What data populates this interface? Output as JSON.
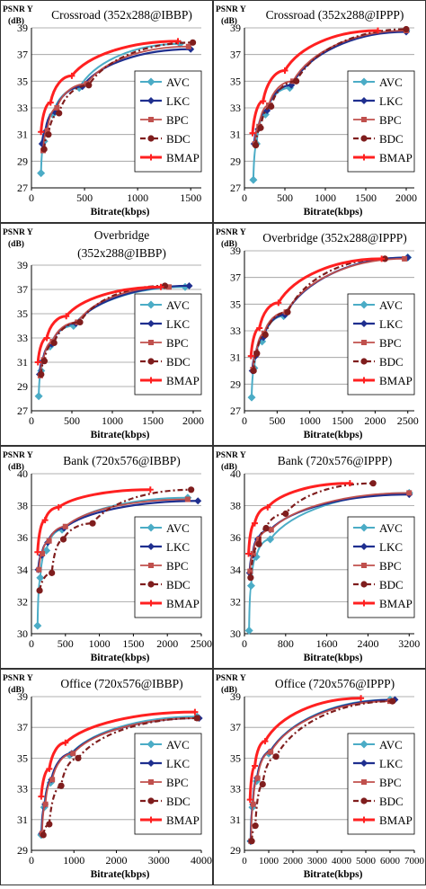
{
  "legend_labels": [
    "AVC",
    "LKC",
    "BPC",
    "BDC",
    "BMAP"
  ],
  "colors": {
    "AVC": "#4bacc6",
    "LKC": "#1f2f8f",
    "BPC": "#c0504d",
    "BDC": "#7f1d1d",
    "BMAP": "#ff2020"
  },
  "chart_data": [
    {
      "type": "line",
      "title": "Crossroad (352x288@IBBP)",
      "ylabel_top": "PSNR Y",
      "ylabel_unit": "(dB)",
      "xlabel": "Bitrate(kbps)",
      "xlim": [
        0,
        1600
      ],
      "ylim": [
        27,
        39
      ],
      "xticks": [
        0,
        500,
        1000,
        1500
      ],
      "yticks": [
        27,
        29,
        31,
        33,
        35,
        37,
        39
      ],
      "series": [
        {
          "name": "AVC",
          "x": [
            90,
            120,
            200,
            450,
            1400
          ],
          "y": [
            28.1,
            30.5,
            32.5,
            34.5,
            37.8
          ]
        },
        {
          "name": "LKC",
          "x": [
            100,
            130,
            220,
            480,
            1500
          ],
          "y": [
            30.3,
            31.2,
            32.7,
            34.6,
            37.4
          ]
        },
        {
          "name": "BPC",
          "x": [
            110,
            150,
            240,
            520,
            1480
          ],
          "y": [
            29.8,
            31.3,
            33.0,
            34.8,
            37.6
          ]
        },
        {
          "name": "BDC",
          "x": [
            120,
            160,
            260,
            540,
            1520
          ],
          "y": [
            29.9,
            31.0,
            32.6,
            34.7,
            37.9
          ]
        },
        {
          "name": "BMAP",
          "x": [
            90,
            180,
            380,
            1380
          ],
          "y": [
            31.2,
            33.4,
            35.4,
            38.0
          ]
        }
      ]
    },
    {
      "type": "line",
      "title": "Crossroad (352x288@IPPP)",
      "ylabel_top": "PSNR Y",
      "ylabel_unit": "(dB)",
      "xlabel": "Bitrate(kbps)",
      "xlim": [
        0,
        2100
      ],
      "ylim": [
        27,
        39
      ],
      "xticks": [
        0,
        500,
        1000,
        1500,
        2000
      ],
      "yticks": [
        27,
        29,
        31,
        33,
        35,
        37,
        39
      ],
      "series": [
        {
          "name": "AVC",
          "x": [
            110,
            150,
            260,
            560,
            2000
          ],
          "y": [
            27.6,
            30.3,
            32.5,
            34.5,
            38.8
          ]
        },
        {
          "name": "LKC",
          "x": [
            120,
            170,
            280,
            580,
            2000
          ],
          "y": [
            30.3,
            31.4,
            32.8,
            34.7,
            38.7
          ]
        },
        {
          "name": "BPC",
          "x": [
            130,
            180,
            300,
            600,
            2000
          ],
          "y": [
            30.3,
            31.6,
            33.2,
            35.0,
            38.8
          ]
        },
        {
          "name": "BDC",
          "x": [
            140,
            200,
            330,
            640,
            2000
          ],
          "y": [
            30.2,
            31.5,
            33.1,
            35.0,
            38.9
          ]
        },
        {
          "name": "BMAP",
          "x": [
            100,
            230,
            500,
            1650
          ],
          "y": [
            31.1,
            33.5,
            35.8,
            38.8
          ]
        }
      ]
    },
    {
      "type": "line",
      "title": "Overbridge",
      "subtitle": "(352x288@IBBP)",
      "ylabel_top": "PSNR Y",
      "ylabel_unit": "(dB)",
      "xlabel": "Bitrate(kbps)",
      "xlim": [
        0,
        2100
      ],
      "ylim": [
        27,
        39
      ],
      "xticks": [
        0,
        500,
        1000,
        1500,
        2000
      ],
      "yticks": [
        27,
        29,
        31,
        33,
        35,
        37,
        39
      ],
      "series": [
        {
          "name": "AVC",
          "x": [
            90,
            120,
            230,
            520,
            1900
          ],
          "y": [
            28.2,
            30.3,
            32.3,
            34.0,
            37.2
          ]
        },
        {
          "name": "LKC",
          "x": [
            100,
            140,
            250,
            550,
            1950
          ],
          "y": [
            30.0,
            31.1,
            32.5,
            34.2,
            37.3
          ]
        },
        {
          "name": "BPC",
          "x": [
            110,
            150,
            260,
            570,
            1700
          ],
          "y": [
            29.9,
            31.2,
            32.7,
            34.3,
            37.2
          ]
        },
        {
          "name": "BDC",
          "x": [
            120,
            160,
            280,
            600,
            1650
          ],
          "y": [
            30.0,
            31.1,
            32.6,
            34.3,
            37.3
          ]
        },
        {
          "name": "BMAP",
          "x": [
            80,
            190,
            430,
            1600
          ],
          "y": [
            31.0,
            33.0,
            34.8,
            37.2
          ]
        }
      ]
    },
    {
      "type": "line",
      "title": "Overbridge (352x288@IPPP)",
      "ylabel_top": "PSNR Y",
      "ylabel_unit": "(dB)",
      "xlabel": "Bitrate(kbps)",
      "xlim": [
        0,
        2600
      ],
      "ylim": [
        27,
        39
      ],
      "xticks": [
        0,
        500,
        1000,
        1500,
        2000,
        2500
      ],
      "yticks": [
        27,
        29,
        31,
        33,
        35,
        37,
        39
      ],
      "series": [
        {
          "name": "AVC",
          "x": [
            110,
            150,
            270,
            600,
            2500
          ],
          "y": [
            28.0,
            30.2,
            32.2,
            34.1,
            38.5
          ]
        },
        {
          "name": "LKC",
          "x": [
            120,
            170,
            290,
            620,
            2500
          ],
          "y": [
            30.0,
            31.1,
            32.5,
            34.2,
            38.5
          ]
        },
        {
          "name": "BPC",
          "x": [
            130,
            180,
            300,
            640,
            2450
          ],
          "y": [
            30.1,
            31.3,
            32.8,
            34.4,
            38.4
          ]
        },
        {
          "name": "BDC",
          "x": [
            140,
            190,
            320,
            660,
            2150
          ],
          "y": [
            30.0,
            31.3,
            32.7,
            34.4,
            38.4
          ]
        },
        {
          "name": "BMAP",
          "x": [
            100,
            230,
            520,
            2100
          ],
          "y": [
            31.1,
            33.2,
            35.1,
            38.4
          ]
        }
      ]
    },
    {
      "type": "line",
      "title": "Bank (720x576@IBBP)",
      "ylabel_top": "PSNR Y",
      "ylabel_unit": "(dB)",
      "xlabel": "Bitrate(kbps)",
      "xlim": [
        0,
        2500
      ],
      "ylim": [
        30,
        40
      ],
      "xticks": [
        0,
        500,
        1000,
        1500,
        2000,
        2500
      ],
      "yticks": [
        30,
        32,
        34,
        36,
        38,
        40
      ],
      "series": [
        {
          "name": "AVC",
          "x": [
            90,
            130,
            220,
            450,
            2300
          ],
          "y": [
            30.5,
            33.5,
            35.2,
            36.5,
            38.5
          ]
        },
        {
          "name": "LKC",
          "x": [
            100,
            150,
            240,
            480,
            2450
          ],
          "y": [
            34.0,
            34.9,
            35.7,
            36.6,
            38.3
          ]
        },
        {
          "name": "BPC",
          "x": [
            110,
            160,
            260,
            500,
            2300
          ],
          "y": [
            34.0,
            35.0,
            35.8,
            36.7,
            38.4
          ]
        },
        {
          "name": "BDC",
          "x": [
            120,
            300,
            470,
            900,
            2350
          ],
          "y": [
            32.7,
            33.8,
            35.9,
            36.9,
            39.0
          ]
        },
        {
          "name": "BMAP",
          "x": [
            90,
            200,
            400,
            1750
          ],
          "y": [
            35.1,
            37.1,
            37.9,
            39.0
          ]
        }
      ]
    },
    {
      "type": "line",
      "title": "Bank (720x576@IPPP)",
      "ylabel_top": "PSNR Y",
      "ylabel_unit": "(dB)",
      "xlabel": "Bitrate(kbps)",
      "xlim": [
        0,
        3300
      ],
      "ylim": [
        30,
        40
      ],
      "xticks": [
        0,
        800,
        1600,
        2400,
        3200
      ],
      "yticks": [
        30,
        32,
        34,
        36,
        38,
        40
      ],
      "series": [
        {
          "name": "AVC",
          "x": [
            90,
            130,
            230,
            500,
            3200
          ],
          "y": [
            30.2,
            33.0,
            34.8,
            35.9,
            38.8
          ]
        },
        {
          "name": "LKC",
          "x": [
            100,
            160,
            260,
            500,
            3200
          ],
          "y": [
            33.8,
            34.9,
            35.9,
            36.5,
            38.7
          ]
        },
        {
          "name": "BPC",
          "x": [
            110,
            170,
            280,
            520,
            3200
          ],
          "y": [
            33.9,
            35.0,
            35.9,
            36.5,
            38.8
          ]
        },
        {
          "name": "BDC",
          "x": [
            120,
            280,
            420,
            800,
            2500
          ],
          "y": [
            33.5,
            35.6,
            36.6,
            37.5,
            39.4
          ]
        },
        {
          "name": "BMAP",
          "x": [
            80,
            200,
            450,
            2050
          ],
          "y": [
            35.0,
            36.9,
            37.9,
            39.4
          ]
        }
      ]
    },
    {
      "type": "line",
      "title": "Office (720x576@IBBP)",
      "ylabel_top": "PSNR Y",
      "ylabel_unit": "(dB)",
      "xlabel": "Bitrate(kbps)",
      "xlim": [
        0,
        4000
      ],
      "ylim": [
        29,
        39
      ],
      "xticks": [
        0,
        1000,
        2000,
        3000,
        4000
      ],
      "yticks": [
        29,
        31,
        33,
        35,
        37,
        39
      ],
      "series": [
        {
          "name": "AVC",
          "x": [
            230,
            300,
            450,
            900,
            3900
          ],
          "y": [
            30.0,
            31.8,
            33.4,
            35.2,
            37.7
          ]
        },
        {
          "name": "LKC",
          "x": [
            240,
            320,
            470,
            950,
            3950
          ],
          "y": [
            30.1,
            32.0,
            33.6,
            35.3,
            37.6
          ]
        },
        {
          "name": "BPC",
          "x": [
            250,
            330,
            490,
            980,
            3900
          ],
          "y": [
            30.1,
            32.0,
            33.6,
            35.3,
            37.6
          ]
        },
        {
          "name": "BDC",
          "x": [
            280,
            420,
            700,
            1100,
            3900
          ],
          "y": [
            30.0,
            30.7,
            33.2,
            35.0,
            37.6
          ]
        },
        {
          "name": "BMAP",
          "x": [
            230,
            420,
            800,
            3850
          ],
          "y": [
            32.5,
            34.3,
            36.0,
            38.0
          ]
        }
      ]
    },
    {
      "type": "line",
      "title": "Office (720x576@IPPP)",
      "ylabel_top": "PSNR Y",
      "ylabel_unit": "(dB)",
      "xlabel": "Bitrate(kbps)",
      "xlim": [
        0,
        7000
      ],
      "ylim": [
        29,
        39
      ],
      "xticks": [
        0,
        1000,
        2000,
        3000,
        4000,
        5000,
        6000,
        7000
      ],
      "yticks": [
        29,
        31,
        33,
        35,
        37,
        39
      ],
      "series": [
        {
          "name": "AVC",
          "x": [
            250,
            330,
            500,
            1000,
            6000
          ],
          "y": [
            29.6,
            31.8,
            33.5,
            35.3,
            38.8
          ]
        },
        {
          "name": "LKC",
          "x": [
            260,
            350,
            520,
            1050,
            6200
          ],
          "y": [
            29.6,
            32.0,
            33.7,
            35.4,
            38.8
          ]
        },
        {
          "name": "BPC",
          "x": [
            270,
            360,
            540,
            1080,
            6000
          ],
          "y": [
            29.6,
            32.0,
            33.7,
            35.4,
            38.7
          ]
        },
        {
          "name": "BDC",
          "x": [
            300,
            450,
            750,
            1300,
            6100
          ],
          "y": [
            29.6,
            30.6,
            33.3,
            35.1,
            38.7
          ]
        },
        {
          "name": "BMAP",
          "x": [
            230,
            430,
            850,
            4800
          ],
          "y": [
            32.3,
            34.5,
            36.1,
            38.9
          ]
        }
      ]
    }
  ]
}
